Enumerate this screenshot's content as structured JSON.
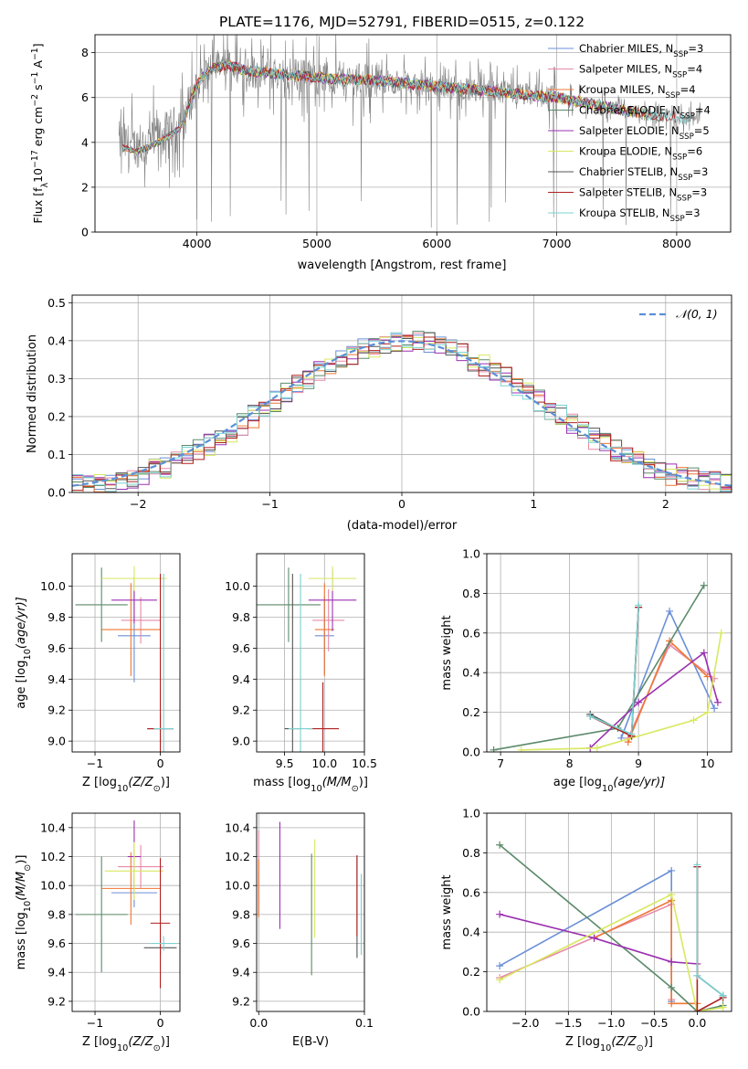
{
  "figure": {
    "title": "PLATE=1176, MJD=52791, FIBERID=0515, z=0.122"
  },
  "colors": {
    "Chabrier MILES": "#6b8fd8",
    "Salpeter MILES": "#e88aa8",
    "Kroupa MILES": "#ee7733",
    "Chabrier ELODIE": "#5b8a6a",
    "Salpeter ELODIE": "#9b30b0",
    "Kroupa ELODIE": "#d8e860",
    "Chabrier STELIB": "#555555",
    "Salpeter STELIB": "#b02020",
    "Kroupa STELIB": "#7ad0d0",
    "normal": "#5b8fd8",
    "grid": "#b0b0b0",
    "spectrum_data": "#808080"
  },
  "chart_data": [
    {
      "id": "spectrum",
      "type": "line",
      "xlabel": "wavelength [Angstrom, rest frame]",
      "ylabel_main": "Flux [f",
      "ylabel_sub": "λ",
      "ylabel_rest": "10",
      "ylabel_exp": "−17",
      "ylabel_tail": " erg cm",
      "ylabel_exp2": "−2",
      "ylabel_tail2": " s",
      "ylabel_exp3": "−1",
      "ylabel_tail3": " A",
      "ylabel_exp4": "−1",
      "ylabel_end": "]",
      "xlim": [
        3150,
        8450
      ],
      "ylim": [
        0,
        8.8
      ],
      "xticks": [
        4000,
        5000,
        6000,
        7000,
        8000
      ],
      "xticklabels": [
        "4000",
        "5000",
        "6000",
        "7000",
        "8000"
      ],
      "yticks": [
        0,
        2,
        4,
        6,
        8
      ],
      "yticklabels": [
        "0",
        "2",
        "4",
        "6",
        "8"
      ],
      "legend": "upper-right",
      "legend_entries": [
        {
          "prefix": "Chabrier MILES, N",
          "sub": "SSP",
          "suffix": "=3",
          "color": "#6b8fd8"
        },
        {
          "prefix": "Salpeter MILES, N",
          "sub": "SSP",
          "suffix": "=4",
          "color": "#e88aa8"
        },
        {
          "prefix": "Kroupa MILES, N",
          "sub": "SSP",
          "suffix": "=4",
          "color": "#ee7733"
        },
        {
          "prefix": "Chabrier ELODIE, N",
          "sub": "SSP",
          "suffix": "=4",
          "color": "#5b8a6a"
        },
        {
          "prefix": "Salpeter ELODIE, N",
          "sub": "SSP",
          "suffix": "=5",
          "color": "#9b30b0"
        },
        {
          "prefix": "Kroupa ELODIE, N",
          "sub": "SSP",
          "suffix": "=6",
          "color": "#d8e860"
        },
        {
          "prefix": "Chabrier STELIB, N",
          "sub": "SSP",
          "suffix": "=3",
          "color": "#555555"
        },
        {
          "prefix": "Salpeter STELIB, N",
          "sub": "SSP",
          "suffix": "=3",
          "color": "#b02020"
        },
        {
          "prefix": "Kroupa STELIB, N",
          "sub": "SSP",
          "suffix": "=3",
          "color": "#7ad0d0"
        }
      ],
      "data_envelope": {
        "x": [
          3350,
          3500,
          3600,
          3700,
          3800,
          3900,
          4000,
          4100,
          4200,
          4300,
          4400,
          4600,
          4800,
          5000,
          5200,
          5400,
          5600,
          5800,
          6000,
          6200,
          6400,
          6600,
          6800,
          7000,
          7200,
          7400,
          7600,
          7800,
          8000,
          8200
        ],
        "y": [
          4.0,
          3.8,
          4.0,
          4.3,
          4.6,
          5.2,
          6.6,
          7.2,
          7.4,
          7.4,
          7.2,
          7.1,
          7.0,
          6.9,
          6.8,
          6.8,
          6.7,
          6.6,
          6.5,
          6.4,
          6.3,
          6.2,
          6.1,
          6.0,
          5.8,
          5.6,
          5.4,
          5.2,
          5.1,
          5.0
        ]
      }
    },
    {
      "id": "residuals",
      "type": "histogram",
      "xlabel": "(data-model)/error",
      "ylabel": "Normed distribution",
      "xlim": [
        -2.5,
        2.5
      ],
      "ylim": [
        0,
        0.52
      ],
      "xticks": [
        -2,
        -1,
        0,
        1,
        2
      ],
      "xticklabels": [
        "−2",
        "−1",
        "0",
        "1",
        "2"
      ],
      "yticks": [
        0,
        0.1,
        0.2,
        0.3,
        0.4,
        0.5
      ],
      "yticklabels": [
        "0.0",
        "0.1",
        "0.2",
        "0.3",
        "0.4",
        "0.5"
      ],
      "legend": "upper-right",
      "legend_label": "𝒩(0, 1)",
      "bin_width": 0.1,
      "bin_start": -2.5,
      "base_heights": [
        0.018,
        0.022,
        0.026,
        0.03,
        0.036,
        0.04,
        0.048,
        0.058,
        0.068,
        0.08,
        0.094,
        0.11,
        0.126,
        0.142,
        0.16,
        0.18,
        0.2,
        0.22,
        0.24,
        0.26,
        0.28,
        0.3,
        0.318,
        0.334,
        0.35,
        0.364,
        0.376,
        0.386,
        0.394,
        0.398,
        0.4,
        0.398,
        0.394,
        0.386,
        0.376,
        0.364,
        0.35,
        0.334,
        0.318,
        0.3,
        0.28,
        0.26,
        0.24,
        0.22,
        0.2,
        0.18,
        0.16,
        0.142,
        0.126,
        0.11,
        0.094,
        0.08,
        0.068,
        0.058,
        0.048,
        0.04,
        0.036,
        0.03,
        0.026,
        0.022
      ]
    },
    {
      "id": "age-vs-Z",
      "type": "errorbar",
      "xlabel": "Z [log",
      "xlabel_sub": "10",
      "xlabel_rest": "(Z/Z",
      "xlabel_sub2": "⊙",
      "xlabel_end": ")]",
      "ylabel": "age  [log",
      "ylabel_sub": "10",
      "ylabel_end": "(age/yr)]",
      "xlim": [
        -1.35,
        0.3
      ],
      "ylim": [
        8.93,
        10.21
      ],
      "xticks": [
        -1,
        0
      ],
      "xticklabels": [
        "−1",
        "0"
      ],
      "yticks": [
        9.0,
        9.2,
        9.4,
        9.6,
        9.8,
        10.0
      ],
      "yticklabels": [
        "9.0",
        "9.2",
        "9.4",
        "9.6",
        "9.8",
        "10.0"
      ],
      "points": [
        {
          "x": -0.4,
          "y": 9.68,
          "xerr": 0.25,
          "yerr": 0.3,
          "c": "Chabrier MILES"
        },
        {
          "x": -0.3,
          "y": 9.78,
          "xerr": 0.3,
          "yerr": 0.15,
          "c": "Salpeter MILES"
        },
        {
          "x": -0.45,
          "y": 9.72,
          "xerr": 0.45,
          "yerr": 0.3,
          "c": "Kroupa MILES"
        },
        {
          "x": -0.9,
          "y": 9.88,
          "xerr": 0.4,
          "yerr": 0.24,
          "c": "Chabrier ELODIE"
        },
        {
          "x": -0.4,
          "y": 9.91,
          "xerr": 0.35,
          "yerr": 0.15,
          "c": "Salpeter ELODIE"
        },
        {
          "x": -0.4,
          "y": 10.05,
          "xerr": 0.5,
          "yerr": 0.08,
          "c": "Kroupa ELODIE"
        },
        {
          "x": 0.0,
          "y": 9.08,
          "xerr": 0.2,
          "yerr": 0.1,
          "c": "Chabrier STELIB"
        },
        {
          "x": 0.0,
          "y": 9.08,
          "xerr": 0.2,
          "yerr": 1.0,
          "c": "Salpeter STELIB"
        },
        {
          "x": 0.05,
          "y": 9.08,
          "xerr": 0.15,
          "yerr": 1.0,
          "c": "Kroupa STELIB"
        }
      ]
    },
    {
      "id": "age-vs-mass",
      "type": "errorbar",
      "xlabel": "mass [log",
      "xlabel_sub": "10",
      "xlabel_rest": "(M/M",
      "xlabel_sub2": "⊙",
      "xlabel_end": ")]",
      "xlim": [
        9.15,
        10.5
      ],
      "ylim": [
        8.93,
        10.21
      ],
      "xticks": [
        9.5,
        10.0,
        10.5
      ],
      "xticklabels": [
        "9.5",
        "10.0",
        "10.5"
      ],
      "yticks": [
        9.0,
        9.2,
        9.4,
        9.6,
        9.8,
        10.0
      ],
      "yticklabels": [
        "9.0",
        "9.2",
        "9.4",
        "9.6",
        "9.8",
        "10.0"
      ],
      "points": [
        {
          "x": 10.0,
          "y": 9.68,
          "xerr": 0.12,
          "yerr": 0.25,
          "c": "Chabrier MILES"
        },
        {
          "x": 10.05,
          "y": 9.78,
          "xerr": 0.2,
          "yerr": 0.2,
          "c": "Salpeter MILES"
        },
        {
          "x": 10.0,
          "y": 9.72,
          "xerr": 0.12,
          "yerr": 0.3,
          "c": "Kroupa MILES"
        },
        {
          "x": 9.55,
          "y": 9.88,
          "xerr": 0.4,
          "yerr": 0.24,
          "c": "Chabrier ELODIE"
        },
        {
          "x": 10.1,
          "y": 9.91,
          "xerr": 0.3,
          "yerr": 0.2,
          "c": "Salpeter ELODIE"
        },
        {
          "x": 10.1,
          "y": 10.05,
          "xerr": 0.3,
          "yerr": 0.08,
          "c": "Kroupa ELODIE"
        },
        {
          "x": 9.6,
          "y": 9.08,
          "xerr": 0.1,
          "yerr": 1.0,
          "c": "Chabrier STELIB"
        },
        {
          "x": 9.98,
          "y": 9.08,
          "xerr": 0.2,
          "yerr": 0.3,
          "c": "Salpeter STELIB"
        },
        {
          "x": 9.7,
          "y": 9.08,
          "xerr": 0.15,
          "yerr": 1.0,
          "c": "Kroupa STELIB"
        }
      ]
    },
    {
      "id": "weight-vs-age",
      "type": "line",
      "xlabel": "age  [log",
      "xlabel_sub": "10",
      "xlabel_end": "(age/yr)]",
      "ylabel": "mass weight",
      "xlim": [
        6.8,
        10.35
      ],
      "ylim": [
        0,
        1.0
      ],
      "xticks": [
        7,
        8,
        9,
        10
      ],
      "xticklabels": [
        "7",
        "8",
        "9",
        "10"
      ],
      "yticks": [
        0,
        0.2,
        0.4,
        0.6,
        0.8,
        1.0
      ],
      "yticklabels": [
        "0.0",
        "0.2",
        "0.4",
        "0.6",
        "0.8",
        "1.0"
      ],
      "series": [
        {
          "c": "Chabrier MILES",
          "x": [
            8.75,
            9.45,
            10.1
          ],
          "y": [
            0.07,
            0.71,
            0.22
          ]
        },
        {
          "c": "Salpeter MILES",
          "x": [
            8.85,
            9.45,
            10.1
          ],
          "y": [
            0.07,
            0.54,
            0.37
          ]
        },
        {
          "c": "Kroupa MILES",
          "x": [
            8.85,
            9.45,
            10.0
          ],
          "y": [
            0.05,
            0.56,
            0.38
          ]
        },
        {
          "c": "Chabrier ELODIE",
          "x": [
            6.9,
            8.7,
            9.95
          ],
          "y": [
            0.01,
            0.12,
            0.84
          ]
        },
        {
          "c": "Salpeter ELODIE",
          "x": [
            8.3,
            9.0,
            9.95,
            10.15
          ],
          "y": [
            0.02,
            0.25,
            0.5,
            0.25
          ]
        },
        {
          "c": "Kroupa ELODIE",
          "x": [
            7.3,
            8.4,
            9.8,
            10.0,
            10.2
          ],
          "y": [
            0.01,
            0.02,
            0.16,
            0.2,
            0.6
          ]
        },
        {
          "c": "Chabrier STELIB",
          "x": [
            8.3,
            8.9,
            9.0
          ],
          "y": [
            0.19,
            0.08,
            0.73
          ]
        },
        {
          "c": "Salpeter STELIB",
          "x": [
            8.3,
            8.9,
            9.0
          ],
          "y": [
            0.18,
            0.08,
            0.73
          ]
        },
        {
          "c": "Kroupa STELIB",
          "x": [
            8.3,
            8.9,
            9.0
          ],
          "y": [
            0.18,
            0.09,
            0.74
          ]
        }
      ]
    },
    {
      "id": "mass-vs-Z",
      "type": "errorbar",
      "xlabel": "Z [log",
      "xlabel_sub": "10",
      "xlabel_rest": "(Z/Z",
      "xlabel_sub2": "⊙",
      "xlabel_end": ")]",
      "ylabel": "mass [log",
      "ylabel_sub": "10",
      "ylabel_rest": "(M/M",
      "ylabel_sub2": "⊙",
      "ylabel_end": ")]",
      "xlim": [
        -1.35,
        0.3
      ],
      "ylim": [
        9.13,
        10.5
      ],
      "xticks": [
        -1,
        0
      ],
      "xticklabels": [
        "−1",
        "0"
      ],
      "yticks": [
        9.2,
        9.4,
        9.6,
        9.8,
        10.0,
        10.2,
        10.4
      ],
      "yticklabels": [
        "9.2",
        "9.4",
        "9.6",
        "9.8",
        "10.0",
        "10.2",
        "10.4"
      ],
      "points": [
        {
          "x": -0.4,
          "y": 9.95,
          "xerr": 0.35,
          "yerr": 0.1,
          "c": "Chabrier MILES"
        },
        {
          "x": -0.3,
          "y": 10.13,
          "xerr": 0.35,
          "yerr": 0.15,
          "c": "Salpeter MILES"
        },
        {
          "x": -0.45,
          "y": 9.98,
          "xerr": 0.45,
          "yerr": 0.25,
          "c": "Kroupa MILES"
        },
        {
          "x": -0.9,
          "y": 9.8,
          "xerr": 0.4,
          "yerr": 0.4,
          "c": "Chabrier ELODIE"
        },
        {
          "x": -0.4,
          "y": 10.2,
          "xerr": 0.1,
          "yerr": 0.25,
          "c": "Salpeter ELODIE"
        },
        {
          "x": -0.4,
          "y": 10.1,
          "xerr": 0.45,
          "yerr": 0.2,
          "c": "Kroupa ELODIE"
        },
        {
          "x": 0.0,
          "y": 9.57,
          "xerr": 0.25,
          "yerr": 0.05,
          "c": "Chabrier STELIB"
        },
        {
          "x": 0.0,
          "y": 9.74,
          "xerr": 0.15,
          "yerr": 0.45,
          "c": "Salpeter STELIB"
        },
        {
          "x": 0.05,
          "y": 9.6,
          "xerr": 0.2,
          "yerr": 0.05,
          "c": "Kroupa STELIB"
        }
      ]
    },
    {
      "id": "mass-vs-EBV",
      "type": "errorbar",
      "xlabel": "E(B-V)",
      "xlim": [
        -0.002,
        0.1
      ],
      "ylim": [
        9.13,
        10.5
      ],
      "xticks": [
        0.0,
        0.1
      ],
      "xticklabels": [
        "0.0",
        "0.1"
      ],
      "yticks": [
        9.2,
        9.4,
        9.6,
        9.8,
        10.0,
        10.2,
        10.4
      ],
      "yticklabels": [
        "9.2",
        "9.4",
        "9.6",
        "9.8",
        "10.0",
        "10.2",
        "10.4"
      ],
      "points": [
        {
          "x": 0.0,
          "y": 9.95,
          "xerr": 0,
          "yerr": 0.15,
          "c": "Chabrier MILES"
        },
        {
          "x": 0.0,
          "y": 10.13,
          "xerr": 0,
          "yerr": 0.25,
          "c": "Salpeter MILES"
        },
        {
          "x": 0.0,
          "y": 9.98,
          "xerr": 0,
          "yerr": 0.2,
          "c": "Kroupa MILES"
        },
        {
          "x": 0.05,
          "y": 9.8,
          "xerr": 0,
          "yerr": 0.42,
          "c": "Chabrier ELODIE"
        },
        {
          "x": 0.02,
          "y": 10.07,
          "xerr": 0,
          "yerr": 0.37,
          "c": "Salpeter ELODIE"
        },
        {
          "x": 0.053,
          "y": 9.98,
          "xerr": 0,
          "yerr": 0.34,
          "c": "Kroupa ELODIE"
        },
        {
          "x": 0.093,
          "y": 9.85,
          "xerr": 0,
          "yerr": 0.35,
          "c": "Chabrier STELIB"
        },
        {
          "x": 0.093,
          "y": 9.93,
          "xerr": 0,
          "yerr": 0.28,
          "c": "Salpeter STELIB"
        },
        {
          "x": 0.097,
          "y": 9.8,
          "xerr": 0,
          "yerr": 0.28,
          "c": "Kroupa STELIB"
        }
      ]
    },
    {
      "id": "weight-vs-Z",
      "type": "line",
      "xlabel": "Z [log",
      "xlabel_sub": "10",
      "xlabel_rest": "(Z/Z",
      "xlabel_sub2": "⊙",
      "xlabel_end": ")]",
      "ylabel": "mass weight",
      "xlim": [
        -2.45,
        0.4
      ],
      "ylim": [
        0,
        1.0
      ],
      "xticks": [
        -2.0,
        -1.5,
        -1.0,
        -0.5,
        0.0
      ],
      "xticklabels": [
        "−2.0",
        "−1.5",
        "−1.0",
        "−0.5",
        "0.0"
      ],
      "yticks": [
        0,
        0.2,
        0.4,
        0.6,
        0.8,
        1.0
      ],
      "yticklabels": [
        "0.0",
        "0.2",
        "0.4",
        "0.6",
        "0.8",
        "1.0"
      ],
      "series": [
        {
          "c": "Chabrier MILES",
          "x": [
            -2.3,
            -0.3,
            -0.3
          ],
          "y": [
            0.23,
            0.71,
            0.05
          ]
        },
        {
          "c": "Salpeter MILES",
          "x": [
            -2.3,
            -0.3,
            -0.3
          ],
          "y": [
            0.17,
            0.54,
            0.06
          ]
        },
        {
          "c": "Kroupa MILES",
          "x": [
            -1.2,
            -0.3,
            -0.3,
            0.0
          ],
          "y": [
            0.37,
            0.56,
            0.04,
            0.04
          ]
        },
        {
          "c": "Chabrier ELODIE",
          "x": [
            -2.3,
            -0.3,
            0.0,
            0.3
          ],
          "y": [
            0.84,
            0.12,
            0.0,
            0.03
          ]
        },
        {
          "c": "Salpeter ELODIE",
          "x": [
            -2.3,
            -1.2,
            -0.3,
            0.0
          ],
          "y": [
            0.49,
            0.37,
            0.25,
            0.24
          ]
        },
        {
          "c": "Kroupa ELODIE",
          "x": [
            -2.3,
            -0.3,
            0.0,
            0.3
          ],
          "y": [
            0.16,
            0.59,
            0.0,
            0.02
          ]
        },
        {
          "c": "Chabrier STELIB",
          "x": [
            0.0,
            0.0,
            0.3
          ],
          "y": [
            0.73,
            0.18,
            0.08
          ]
        },
        {
          "c": "Salpeter STELIB",
          "x": [
            0.0,
            0.0,
            0.3
          ],
          "y": [
            0.73,
            0.0,
            0.07
          ]
        },
        {
          "c": "Kroupa STELIB",
          "x": [
            0.0,
            0.0,
            0.3
          ],
          "y": [
            0.74,
            0.18,
            0.08
          ]
        }
      ]
    }
  ]
}
